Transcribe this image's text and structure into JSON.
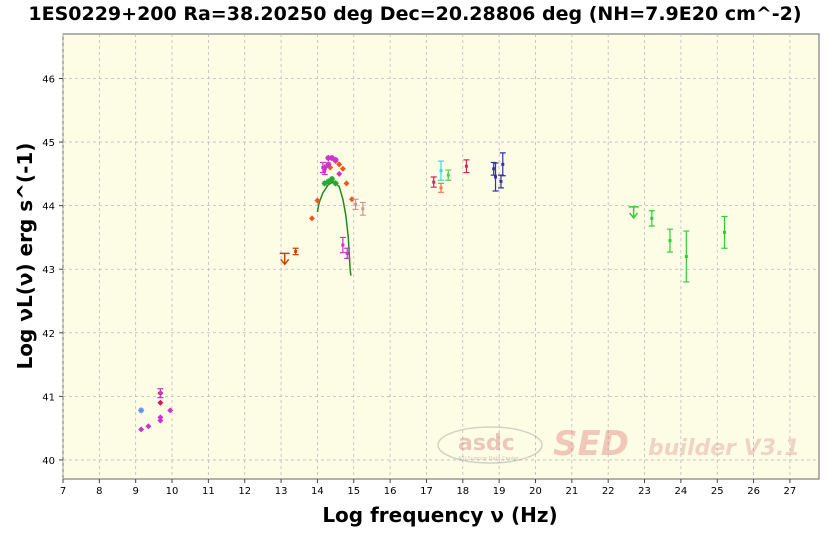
{
  "chart_data": {
    "type": "scatter",
    "title": "1ES0229+200 Ra=38.20250 deg Dec=20.28806 deg (NH=7.9E20 cm^-2)",
    "xlabel": "Log frequency ν (Hz)",
    "ylabel": "Log νL(ν) erg  s^(-1)",
    "xlim": [
      7,
      27.8
    ],
    "ylim": [
      39.7,
      46.7
    ],
    "xticks": [
      "7",
      "8",
      "9",
      "10",
      "11",
      "12",
      "13",
      "14",
      "15",
      "16",
      "17",
      "18",
      "19",
      "20",
      "21",
      "22",
      "23",
      "24",
      "25",
      "26",
      "27"
    ],
    "yticks": [
      "40",
      "41",
      "42",
      "43",
      "44",
      "45",
      "46"
    ],
    "grid": true,
    "background": "#fdfde6",
    "watermark": {
      "logo": "asdc",
      "subtext": "ASI Science Data Center",
      "product": "SED",
      "suffix": "builder V3.1"
    },
    "series": [
      {
        "color": "#6495ed",
        "marker": "star",
        "points": [
          [
            9.15,
            40.78
          ]
        ]
      },
      {
        "color": "#cc33cc",
        "marker": "diamond",
        "points": [
          [
            9.15,
            40.48
          ],
          [
            9.35,
            40.53
          ],
          [
            9.68,
            40.67
          ],
          [
            9.68,
            40.62
          ],
          [
            9.95,
            40.78
          ],
          [
            14.6,
            44.5
          ]
        ]
      },
      {
        "color": "#dd1155",
        "marker": "diamond",
        "points": [
          [
            9.68,
            41.05
          ],
          [
            9.68,
            40.9
          ]
        ]
      },
      {
        "color": "#cc33cc",
        "marker": "errbar",
        "points": [
          [
            9.68,
            41.05,
            0.07
          ],
          [
            14.15,
            44.6,
            0.08
          ],
          [
            14.2,
            44.55,
            0.06
          ],
          [
            14.7,
            43.38,
            0.12
          ],
          [
            14.82,
            43.25,
            0.08
          ]
        ]
      },
      {
        "color": "#ee5522",
        "marker": "diamond",
        "points": [
          [
            13.85,
            43.8
          ],
          [
            14.0,
            44.08
          ],
          [
            14.35,
            44.6
          ],
          [
            14.5,
            44.7
          ],
          [
            14.6,
            44.65
          ],
          [
            14.7,
            44.58
          ],
          [
            14.8,
            44.35
          ],
          [
            14.95,
            44.1
          ]
        ]
      },
      {
        "color": "#cc33cc",
        "marker": "star",
        "points": [
          [
            14.2,
            44.6
          ],
          [
            14.3,
            44.75
          ],
          [
            14.4,
            44.75
          ],
          [
            14.5,
            44.72
          ],
          [
            14.3,
            44.65
          ]
        ]
      },
      {
        "color": "#22aa33",
        "marker": "star",
        "points": [
          [
            14.2,
            44.35
          ],
          [
            14.3,
            44.38
          ],
          [
            14.4,
            44.42
          ],
          [
            14.5,
            44.35
          ]
        ]
      },
      {
        "color": "#cc4400",
        "marker": "errbar",
        "points": [
          [
            13.4,
            43.28,
            0.05
          ]
        ]
      },
      {
        "color": "#cc4400",
        "marker": "upper",
        "points": [
          [
            13.1,
            43.25
          ]
        ]
      },
      {
        "color": "#cc9999",
        "marker": "errbar",
        "points": [
          [
            15.05,
            44.02,
            0.08
          ],
          [
            15.25,
            43.95,
            0.1
          ]
        ]
      },
      {
        "color": "#dd2255",
        "marker": "errbar",
        "points": [
          [
            17.2,
            44.37,
            0.08
          ],
          [
            18.1,
            44.62,
            0.1
          ]
        ]
      },
      {
        "color": "#ee7755",
        "marker": "errbar",
        "points": [
          [
            17.4,
            44.28,
            0.07
          ]
        ]
      },
      {
        "color": "#33dddd",
        "marker": "errbar",
        "points": [
          [
            17.4,
            44.55,
            0.15
          ]
        ]
      },
      {
        "color": "#55cc55",
        "marker": "errbar",
        "points": [
          [
            17.6,
            44.48,
            0.08
          ]
        ]
      },
      {
        "color": "#3333aa",
        "marker": "errbar",
        "points": [
          [
            18.85,
            44.58,
            0.1
          ],
          [
            18.9,
            44.45,
            0.22
          ],
          [
            19.05,
            44.38,
            0.1
          ],
          [
            19.1,
            44.65,
            0.18
          ]
        ]
      },
      {
        "color": "#33cc33",
        "marker": "upper",
        "points": [
          [
            22.7,
            43.98
          ]
        ]
      },
      {
        "color": "#33cc33",
        "marker": "errbar",
        "points": [
          [
            23.2,
            43.8,
            0.12
          ],
          [
            23.7,
            43.45,
            0.18
          ],
          [
            24.15,
            43.2,
            0.4
          ],
          [
            25.2,
            43.58,
            0.25
          ]
        ]
      }
    ],
    "model_curve": {
      "color": "#228822",
      "points": [
        [
          14.0,
          43.9
        ],
        [
          14.05,
          44.05
        ],
        [
          14.15,
          44.2
        ],
        [
          14.3,
          44.33
        ],
        [
          14.45,
          44.38
        ],
        [
          14.6,
          44.3
        ],
        [
          14.7,
          44.1
        ],
        [
          14.78,
          43.85
        ],
        [
          14.85,
          43.5
        ],
        [
          14.9,
          43.0
        ],
        [
          14.92,
          42.9
        ]
      ]
    }
  }
}
